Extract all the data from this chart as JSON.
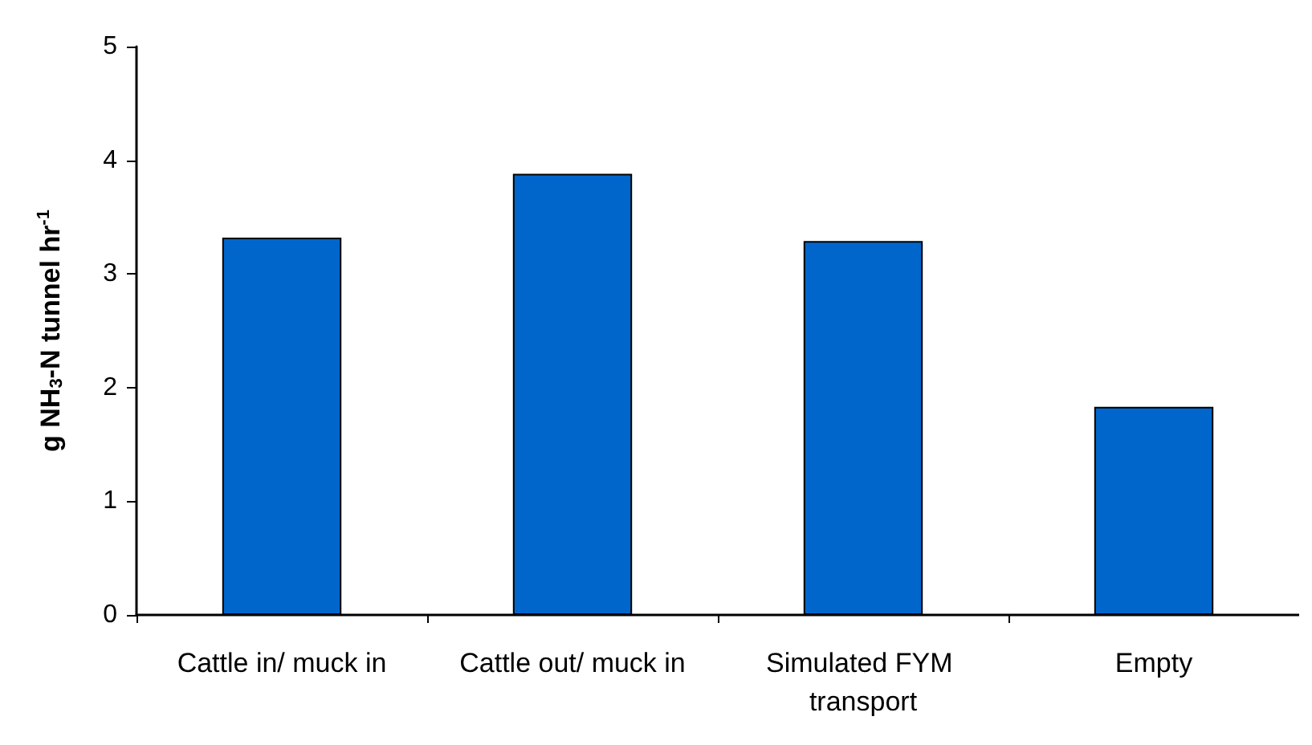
{
  "chart_data": {
    "type": "bar",
    "ylabel": "g NH$_{3}$-N tunnel hr$^{-1}$",
    "categories": [
      "Cattle in/ muck in",
      "Cattle out/ muck in",
      "Simulated FYM transport",
      "Empty"
    ],
    "values": [
      3.32,
      3.88,
      3.29,
      1.83
    ],
    "color": "#0066cc",
    "ylim": [
      0,
      5
    ],
    "yticks": [
      0,
      1,
      2,
      3,
      4,
      5
    ],
    "grid": false
  }
}
